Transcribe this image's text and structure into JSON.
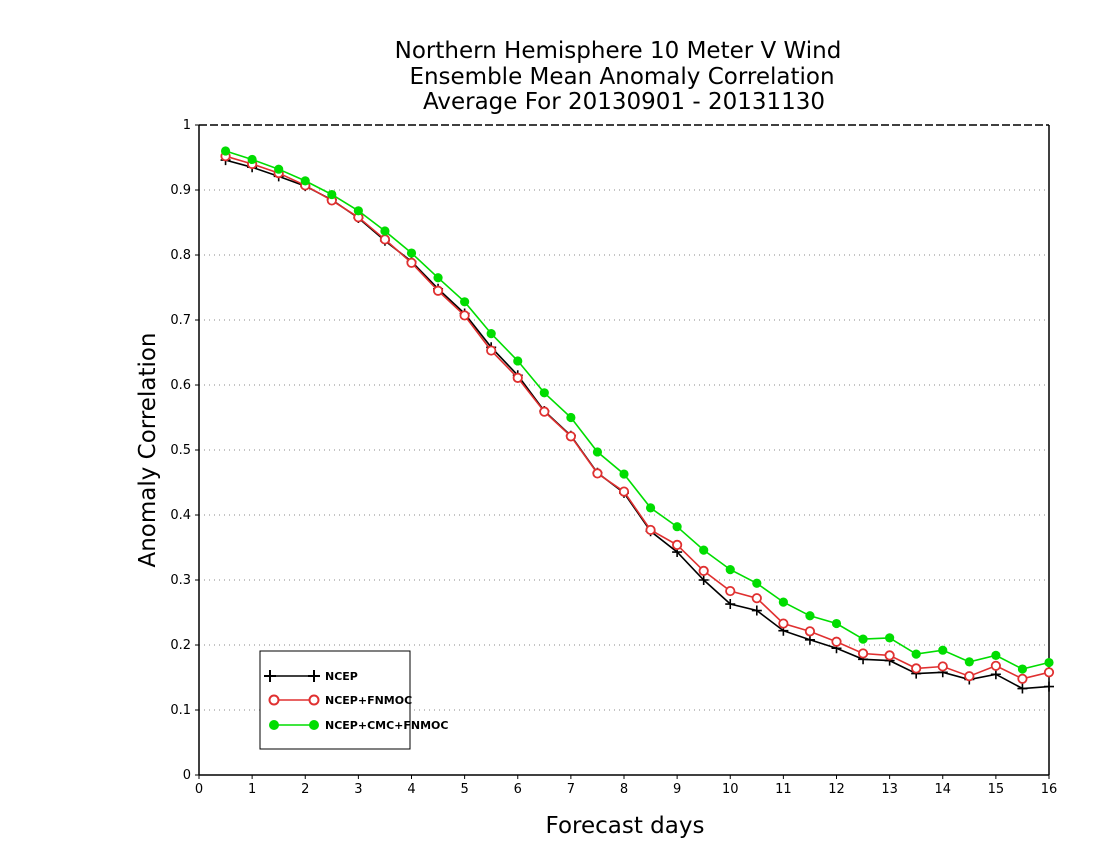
{
  "chart_data": {
    "type": "line",
    "title": [
      "Northern Hemisphere 10 Meter V Wind",
      "Ensemble Mean Anomaly Correlation",
      "Average For 20130901 - 20131130"
    ],
    "xlabel": "Forecast days",
    "ylabel": "Anomaly Correlation",
    "xlim": [
      0,
      16
    ],
    "ylim": [
      0,
      1
    ],
    "xticks": [
      0,
      1,
      2,
      3,
      4,
      5,
      6,
      7,
      8,
      9,
      10,
      11,
      12,
      13,
      14,
      15,
      16
    ],
    "yticks": [
      0,
      0.1,
      0.2,
      0.3,
      0.4,
      0.5,
      0.6,
      0.7,
      0.8,
      0.9,
      1
    ],
    "ytick_labels": [
      "0",
      "0.1",
      "0.2",
      "0.3",
      "0.4",
      "0.5",
      "0.6",
      "0.7",
      "0.8",
      "0.9",
      "1"
    ],
    "grid": "horizontal dotted",
    "legend_position": "bottom-left",
    "x": [
      0.5,
      1,
      1.5,
      2,
      2.5,
      3,
      3.5,
      4,
      4.5,
      5,
      5.5,
      6,
      6.5,
      7,
      7.5,
      8,
      8.5,
      9,
      9.5,
      10,
      10.5,
      11,
      11.5,
      12,
      12.5,
      13,
      13.5,
      14,
      14.5,
      15,
      15.5,
      16
    ],
    "series": [
      {
        "name": "NCEP",
        "color": "#000000",
        "marker": "plus",
        "values": [
          0.946,
          0.935,
          0.921,
          0.906,
          0.885,
          0.857,
          0.822,
          0.79,
          0.748,
          0.71,
          0.658,
          0.615,
          0.56,
          0.522,
          0.465,
          0.434,
          0.375,
          0.343,
          0.3,
          0.263,
          0.253,
          0.222,
          0.208,
          0.195,
          0.178,
          0.176,
          0.156,
          0.158,
          0.147,
          0.155,
          0.133,
          0.136
        ]
      },
      {
        "name": "NCEP+FNMOC",
        "color": "#e03030",
        "marker": "open-circle",
        "values": [
          0.952,
          0.94,
          0.926,
          0.907,
          0.884,
          0.858,
          0.824,
          0.788,
          0.745,
          0.707,
          0.653,
          0.611,
          0.559,
          0.521,
          0.464,
          0.436,
          0.377,
          0.354,
          0.314,
          0.283,
          0.272,
          0.233,
          0.221,
          0.205,
          0.187,
          0.184,
          0.164,
          0.167,
          0.152,
          0.168,
          0.148,
          0.158
        ]
      },
      {
        "name": "NCEP+CMC+FNMOC",
        "color": "#00dd00",
        "marker": "filled-circle",
        "values": [
          0.96,
          0.947,
          0.932,
          0.914,
          0.893,
          0.868,
          0.837,
          0.803,
          0.765,
          0.728,
          0.679,
          0.637,
          0.588,
          0.55,
          0.497,
          0.463,
          0.411,
          0.382,
          0.346,
          0.316,
          0.295,
          0.266,
          0.245,
          0.233,
          0.209,
          0.211,
          0.186,
          0.192,
          0.174,
          0.184,
          0.163,
          0.173
        ]
      }
    ]
  }
}
